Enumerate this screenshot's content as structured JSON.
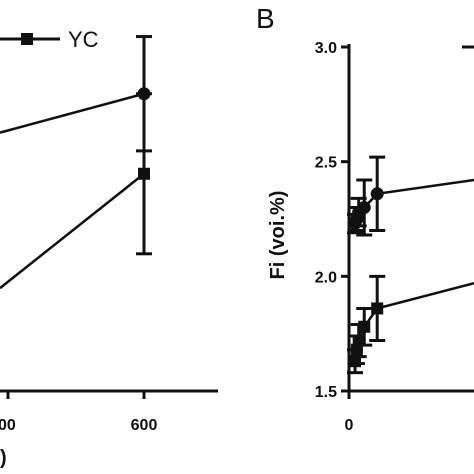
{
  "chart_data": [
    {
      "type": "line",
      "panel": "",
      "legend": {
        "position": "top",
        "entries": [
          "YC"
        ]
      },
      "x": [
        600
      ],
      "x_ticks": [
        "00",
        "600"
      ],
      "xlabel_fragment": ")",
      "series": [
        {
          "name": "",
          "marker": "circle",
          "values": [
            2.8
          ],
          "errors": [
            0.25
          ]
        },
        {
          "name": "YC",
          "marker": "square",
          "values": [
            2.45
          ],
          "errors": [
            0.35
          ]
        }
      ],
      "left_series_start": [
        2.63,
        1.95
      ],
      "grid": false
    },
    {
      "type": "line",
      "panel": "B",
      "ylabel": "Fi (voi.%)",
      "ylim": [
        1.5,
        3.0
      ],
      "y_ticks": [
        "1.5",
        "2.0",
        "2.5",
        "3.0"
      ],
      "x_ticks": [
        "0"
      ],
      "series": [
        {
          "name": "",
          "marker": "circle",
          "x": [
            0,
            5,
            10,
            25,
            60
          ],
          "values": [
            2.23,
            2.25,
            2.28,
            2.3,
            2.36
          ],
          "errors": [
            0.04,
            0.05,
            0.06,
            0.12,
            0.16
          ]
        },
        {
          "name": "",
          "marker": "square",
          "x": [
            0,
            5,
            10,
            25,
            60
          ],
          "values": [
            1.63,
            1.68,
            1.72,
            1.78,
            1.86
          ],
          "errors": [
            0.05,
            0.06,
            0.07,
            0.08,
            0.14
          ]
        }
      ],
      "right_series_end": [
        2.42,
        1.97
      ],
      "grid": false
    }
  ]
}
